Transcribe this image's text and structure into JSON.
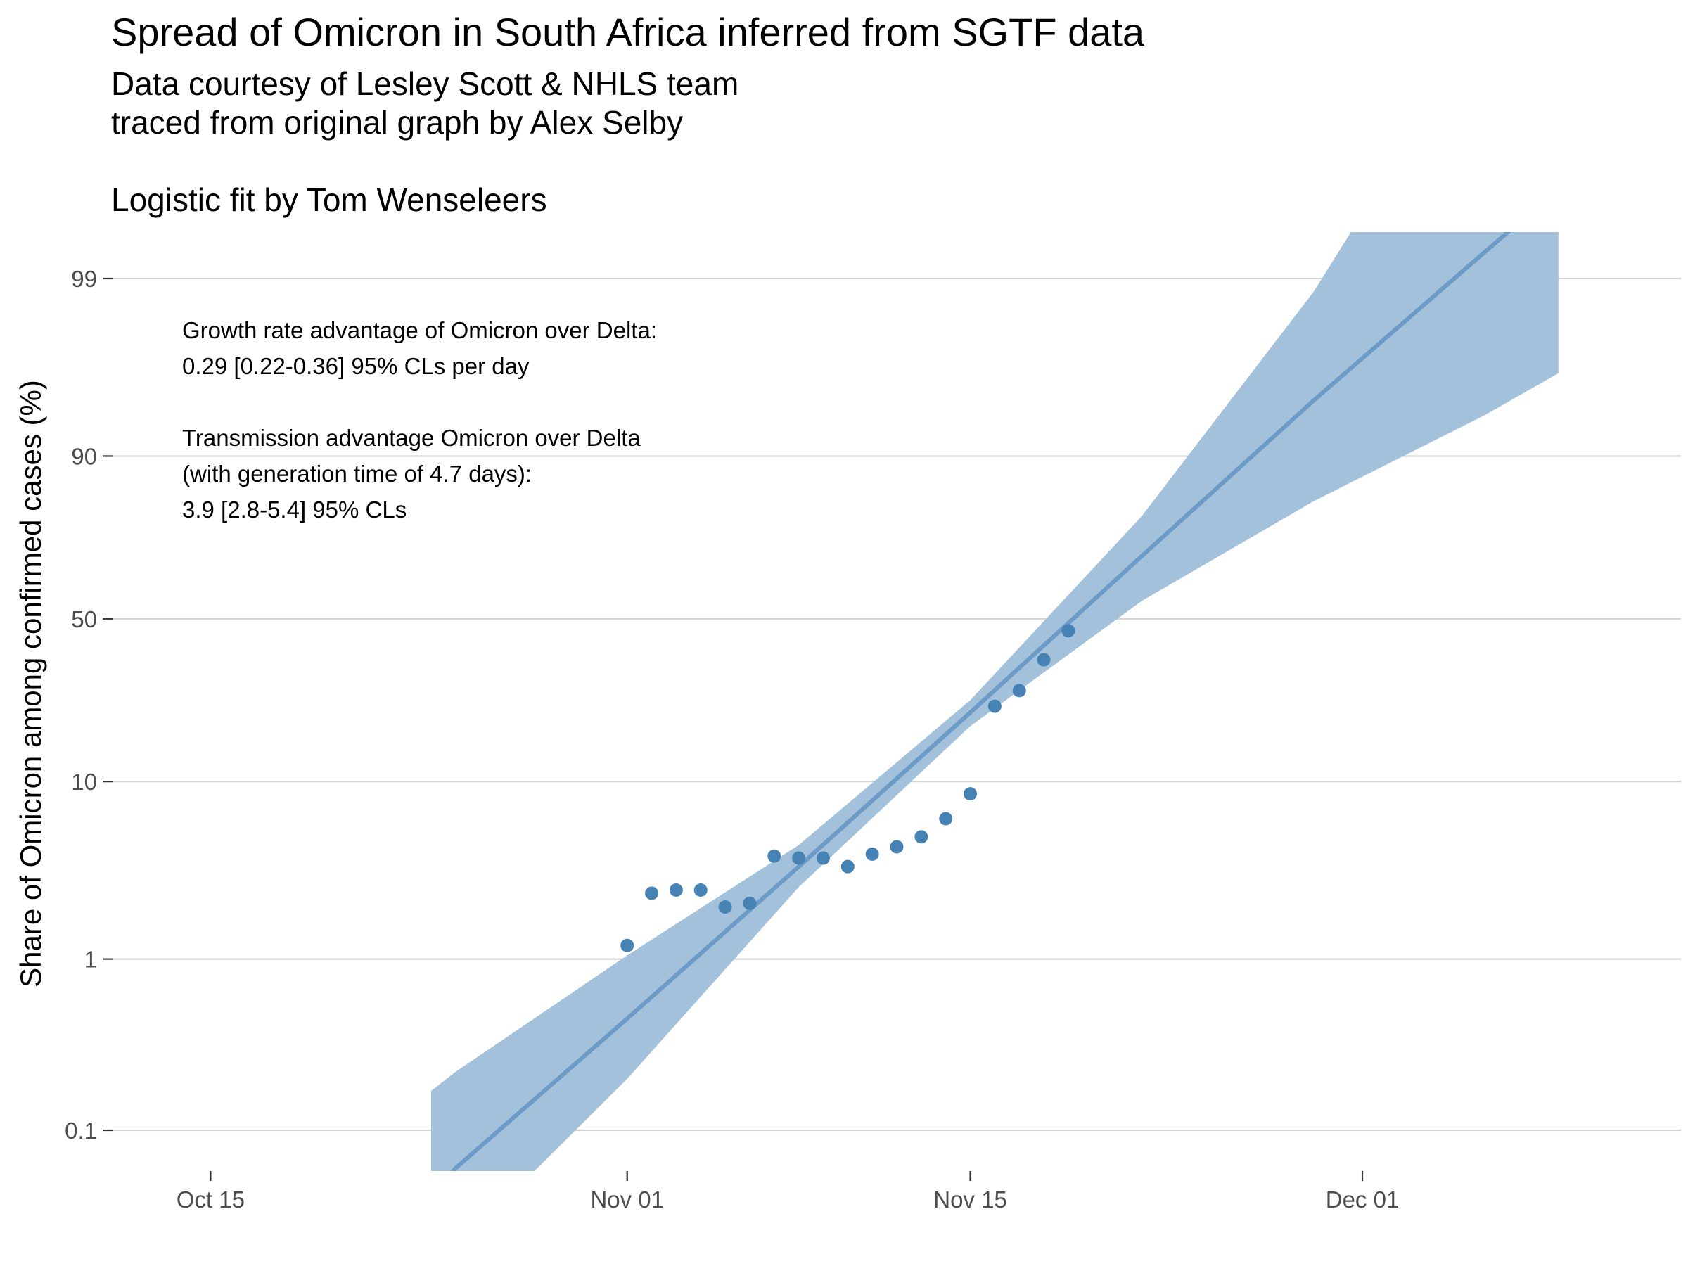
{
  "chart_data": {
    "type": "line",
    "title": "Spread of Omicron in South Africa inferred from SGTF data",
    "subtitle": [
      "Data courtesy of Lesley Scott & NHLS team",
      "traced from original graph by Alex Selby",
      "",
      "Logistic fit by Tom Wenseleers"
    ],
    "ylabel": "Share of Omicron among confirmed cases (%)",
    "xlabel": "",
    "y_scale": "logit",
    "yticks": [
      0.1,
      1,
      10,
      50,
      90,
      99
    ],
    "ytick_labels": [
      "0.1",
      "1",
      "10",
      "50",
      "90",
      "99"
    ],
    "xticks": [
      "2021-10-15",
      "2021-11-01",
      "2021-11-15",
      "2021-12-01"
    ],
    "xtick_labels": [
      "Oct 15",
      "Nov 01",
      "Nov 15",
      "Dec 01"
    ],
    "xlim": [
      "2021-10-11",
      "2021-12-14"
    ],
    "grid": "horizontal major lines only",
    "colors": {
      "points": "#4682B4",
      "ribbon": "#A3C1DB",
      "fit_line": "#6D9BC8",
      "grid": "#D3D3D3"
    },
    "annotation": [
      "Growth rate advantage of Omicron over Delta:",
      "0.29 [0.22-0.36] 95% CLs per day",
      "",
      "Transmission advantage Omicron over Delta",
      "(with generation time of 4.7 days):",
      "3.9 [2.8-5.4] 95% CLs"
    ],
    "series": [
      {
        "kind": "points",
        "x": [
          "2021-11-01",
          "2021-11-02",
          "2021-11-03",
          "2021-11-04",
          "2021-11-05",
          "2021-11-06",
          "2021-11-07",
          "2021-11-08",
          "2021-11-09",
          "2021-11-10",
          "2021-11-11",
          "2021-11-12",
          "2021-11-13",
          "2021-11-14",
          "2021-11-15",
          "2021-11-16",
          "2021-11-17",
          "2021-11-18",
          "2021-11-19"
        ],
        "y": [
          1.2,
          2.4,
          2.5,
          2.5,
          2.0,
          2.1,
          3.9,
          3.8,
          3.8,
          3.4,
          4.0,
          4.4,
          5.0,
          6.3,
          8.6,
          23.5,
          27.5,
          36.5,
          46.0
        ]
      },
      {
        "kind": "fit",
        "x": [
          "2021-10-24",
          "2021-10-25",
          "2021-11-01",
          "2021-11-08",
          "2021-11-15",
          "2021-11-22",
          "2021-11-29",
          "2021-12-06",
          "2021-12-09"
        ],
        "y": [
          0.04,
          0.06,
          0.45,
          3.4,
          22,
          70,
          95,
          99.3,
          99.7
        ],
        "lower": [
          0.01,
          0.02,
          0.2,
          2.6,
          19,
          56,
          83,
          94,
          96.5
        ],
        "upper": [
          0.17,
          0.22,
          1.05,
          4.5,
          25,
          80,
          98.8,
          99.97,
          99.98
        ]
      }
    ]
  }
}
